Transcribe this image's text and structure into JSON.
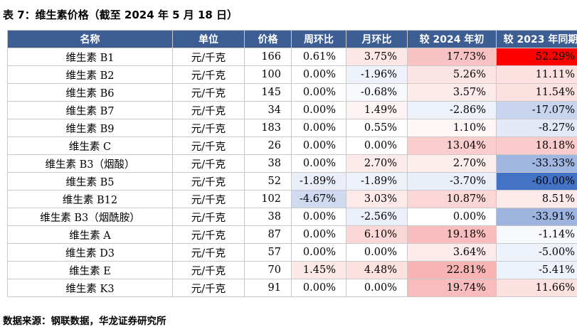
{
  "caption": "表 7：维生素价格（截至 2024 年 5 月 18 日）",
  "columns": [
    "名称",
    "单位",
    "价格",
    "周环比",
    "月环比",
    "较 2024 年初",
    "较 2023 年同期"
  ],
  "rows": [
    {
      "name": "维生素 B1",
      "unit": "元/千克",
      "price": "166",
      "wow": "0.61%",
      "mom": "3.75%",
      "ytd": "17.73%",
      "yoy": "52.29%",
      "bg": {
        "wow": "#ffffff",
        "mom": "#fde6e6",
        "ytd": "#f9c2c2",
        "yoy": "#ff0000"
      }
    },
    {
      "name": "维生素 B2",
      "unit": "元/千克",
      "price": "100",
      "wow": "0.00%",
      "mom": "-1.96%",
      "ytd": "5.26%",
      "yoy": "11.11%",
      "bg": {
        "wow": "#ffffff",
        "mom": "#eef2fa",
        "ytd": "#fde4e4",
        "yoy": "#fde1e1"
      }
    },
    {
      "name": "维生素 B6",
      "unit": "元/千克",
      "price": "145",
      "wow": "0.00%",
      "mom": "-0.68%",
      "ytd": "3.57%",
      "yoy": "11.54%",
      "bg": {
        "wow": "#ffffff",
        "mom": "#f7f9fd",
        "ytd": "#fdeaea",
        "yoy": "#fde1e1"
      }
    },
    {
      "name": "维生素 B7",
      "unit": "元/千克",
      "price": "34",
      "wow": "0.00%",
      "mom": "1.49%",
      "ytd": "-2.86%",
      "yoy": "-17.07%",
      "bg": {
        "wow": "#ffffff",
        "mom": "#fef3f3",
        "ytd": "#edf1f9",
        "yoy": "#c9d5ee"
      }
    },
    {
      "name": "维生素 B9",
      "unit": "元/千克",
      "price": "183",
      "wow": "0.00%",
      "mom": "0.55%",
      "ytd": "1.10%",
      "yoy": "-8.27%",
      "bg": {
        "wow": "#ffffff",
        "mom": "#ffffff",
        "ytd": "#fff7f7",
        "yoy": "#e3e9f6"
      }
    },
    {
      "name": "维生素 C",
      "unit": "元/千克",
      "price": "26",
      "wow": "0.00%",
      "mom": "0.00%",
      "ytd": "13.04%",
      "yoy": "18.18%",
      "bg": {
        "wow": "#ffffff",
        "mom": "#ffffff",
        "ytd": "#fbcdcd",
        "yoy": "#fbcaca"
      }
    },
    {
      "name": "维生素 B3（烟酸）",
      "unit": "元/千克",
      "price": "38",
      "wow": "0.00%",
      "mom": "2.70%",
      "ytd": "2.70%",
      "yoy": "-33.33%",
      "bg": {
        "wow": "#ffffff",
        "mom": "#fdeaea",
        "ytd": "#fdeded",
        "yoy": "#9fb6e0"
      }
    },
    {
      "name": "维生素 B5",
      "unit": "元/千克",
      "price": "52",
      "wow": "-1.89%",
      "mom": "-1.89%",
      "ytd": "-3.70%",
      "yoy": "-60.00%",
      "bg": {
        "wow": "#e9eef8",
        "mom": "#eef2fa",
        "ytd": "#e9eef8",
        "yoy": "#4472c4"
      }
    },
    {
      "name": "维生素 B12",
      "unit": "元/千克",
      "price": "102",
      "wow": "-4.67%",
      "mom": "3.03%",
      "ytd": "10.87%",
      "yoy": "8.51%",
      "bg": {
        "wow": "#cfdaf0",
        "mom": "#fde9e9",
        "ytd": "#fcd6d6",
        "yoy": "#feeaea"
      }
    },
    {
      "name": "维生素 B3（烟酰胺）",
      "unit": "元/千克",
      "price": "38",
      "wow": "0.00%",
      "mom": "-2.56%",
      "ytd": "0.00%",
      "yoy": "-33.91%",
      "bg": {
        "wow": "#ffffff",
        "mom": "#eaeff9",
        "ytd": "#ffffff",
        "yoy": "#9db4df"
      }
    },
    {
      "name": "维生素 A",
      "unit": "元/千克",
      "price": "87",
      "wow": "0.00%",
      "mom": "6.10%",
      "ytd": "19.18%",
      "yoy": "-1.14%",
      "bg": {
        "wow": "#ffffff",
        "mom": "#fbd7d7",
        "ytd": "#f9bdbd",
        "yoy": "#f7f9fd"
      }
    },
    {
      "name": "维生素 D3",
      "unit": "元/千克",
      "price": "57",
      "wow": "0.00%",
      "mom": "0.00%",
      "ytd": "3.64%",
      "yoy": "-5.00%",
      "bg": {
        "wow": "#ffffff",
        "mom": "#ffffff",
        "ytd": "#fdeaea",
        "yoy": "#eef2fa"
      }
    },
    {
      "name": "维生素 E",
      "unit": "元/千克",
      "price": "70",
      "wow": "1.45%",
      "mom": "4.48%",
      "ytd": "22.81%",
      "yoy": "-5.41%",
      "bg": {
        "wow": "#fde8e8",
        "mom": "#fde1e1",
        "ytd": "#f8b3b3",
        "yoy": "#edf1f9"
      }
    },
    {
      "name": "维生素 K3",
      "unit": "元/千克",
      "price": "91",
      "wow": "0.00%",
      "mom": "0.00%",
      "ytd": "19.74%",
      "yoy": "11.66%",
      "bg": {
        "wow": "#ffffff",
        "mom": "#ffffff",
        "ytd": "#f9bcbc",
        "yoy": "#fde1e1"
      }
    }
  ],
  "footer": "数据来源：钢联数据，华龙证券研究所"
}
